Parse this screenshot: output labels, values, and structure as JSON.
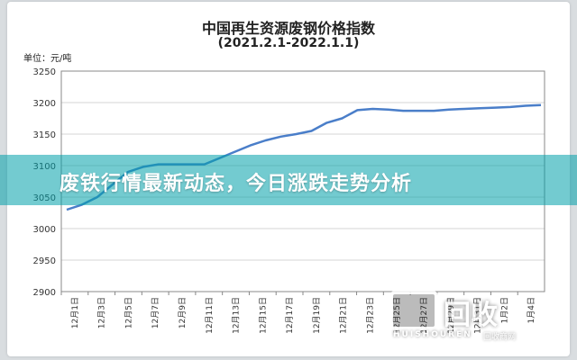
{
  "banner": {
    "headline": "废铁行情最新动态，今日涨跌走势分析"
  },
  "watermark": {
    "text": "回收",
    "sub": "HUISHOUREN",
    "cn": "回收商网"
  },
  "chart_data": {
    "type": "line",
    "title": "中国再生资源废钢价格指数",
    "subtitle": "(2021.2.1-2022.1.1)",
    "unit_label": "单位：元/吨",
    "ylim": [
      2900,
      3250
    ],
    "yticks": [
      2900,
      2950,
      3000,
      3050,
      3100,
      3150,
      3200,
      3250
    ],
    "grid": true,
    "xticks": [
      "12月1日",
      "12月3日",
      "12月5日",
      "12月7日",
      "12月9日",
      "12月11日",
      "12月13日",
      "12月15日",
      "12月17日",
      "12月19日",
      "12月21日",
      "12月23日",
      "12月25日",
      "12月27日",
      "12月29日",
      "12月31日",
      "1月2日",
      "1月4日"
    ],
    "series": [
      {
        "color": "#4a7ec9",
        "values": [
          3030,
          3038,
          3050,
          3070,
          3090,
          3098,
          3102,
          3102,
          3102,
          3102,
          3112,
          3122,
          3132,
          3140,
          3146,
          3150,
          3155,
          3168,
          3175,
          3188,
          3190,
          3189,
          3187,
          3187,
          3187,
          3189,
          3190,
          3191,
          3192,
          3193,
          3195,
          3196
        ]
      }
    ]
  }
}
